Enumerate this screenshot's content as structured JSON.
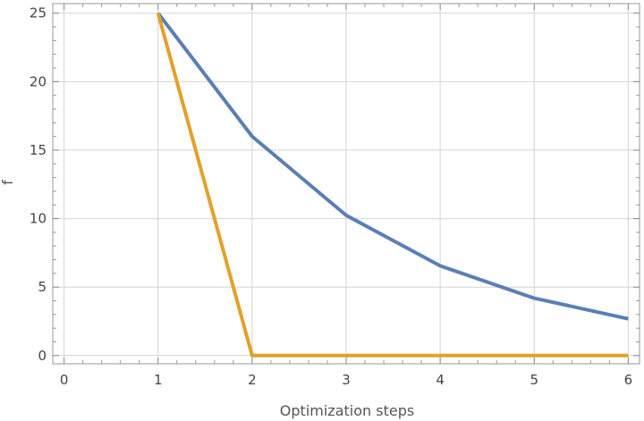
{
  "chart_data": {
    "type": "line",
    "xlabel": "Optimization steps",
    "ylabel": "f",
    "xlim": [
      -0.12,
      6.12
    ],
    "ylim": [
      -0.6,
      25.7
    ],
    "xticks": [
      "0",
      "1",
      "2",
      "3",
      "4",
      "5",
      "6"
    ],
    "yticks": [
      "0",
      "5",
      "10",
      "15",
      "20",
      "25"
    ],
    "grid": true,
    "series": [
      {
        "color": "#5a7fb5",
        "x": [
          1,
          2,
          3,
          4,
          5,
          6
        ],
        "y": [
          25,
          16,
          10.24,
          6.55,
          4.19,
          2.68
        ]
      },
      {
        "color": "#e3a02b",
        "x": [
          1,
          2,
          3,
          4,
          5,
          6
        ],
        "y": [
          25,
          0,
          0,
          0,
          0,
          0
        ]
      }
    ]
  }
}
